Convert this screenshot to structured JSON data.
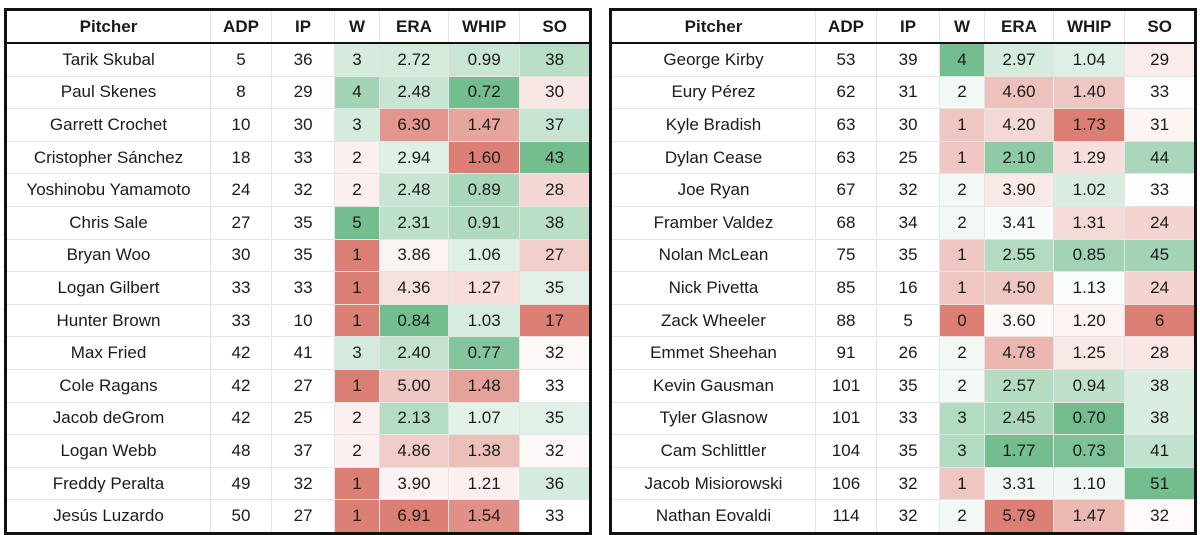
{
  "headers": [
    "Pitcher",
    "ADP",
    "IP",
    "W",
    "ERA",
    "WHIP",
    "SO"
  ],
  "colors": {
    "green_strong": "#73bd8f",
    "red_strong": "#db7f74",
    "neutral": "#ffffff"
  },
  "left_table": [
    {
      "pitcher": "Tarik Skubal",
      "adp": "5",
      "ip": "36",
      "w": "3",
      "era": "2.72",
      "whip": "0.99",
      "so": "38"
    },
    {
      "pitcher": "Paul Skenes",
      "adp": "8",
      "ip": "29",
      "w": "4",
      "era": "2.48",
      "whip": "0.72",
      "so": "30"
    },
    {
      "pitcher": "Garrett Crochet",
      "adp": "10",
      "ip": "30",
      "w": "3",
      "era": "6.30",
      "whip": "1.47",
      "so": "37"
    },
    {
      "pitcher": "Cristopher Sánchez",
      "adp": "18",
      "ip": "33",
      "w": "2",
      "era": "2.94",
      "whip": "1.60",
      "so": "43"
    },
    {
      "pitcher": "Yoshinobu Yamamoto",
      "adp": "24",
      "ip": "32",
      "w": "2",
      "era": "2.48",
      "whip": "0.89",
      "so": "28"
    },
    {
      "pitcher": "Chris Sale",
      "adp": "27",
      "ip": "35",
      "w": "5",
      "era": "2.31",
      "whip": "0.91",
      "so": "38"
    },
    {
      "pitcher": "Bryan Woo",
      "adp": "30",
      "ip": "35",
      "w": "1",
      "era": "3.86",
      "whip": "1.06",
      "so": "27"
    },
    {
      "pitcher": "Logan Gilbert",
      "adp": "33",
      "ip": "33",
      "w": "1",
      "era": "4.36",
      "whip": "1.27",
      "so": "35"
    },
    {
      "pitcher": "Hunter Brown",
      "adp": "33",
      "ip": "10",
      "w": "1",
      "era": "0.84",
      "whip": "1.03",
      "so": "17"
    },
    {
      "pitcher": "Max Fried",
      "adp": "42",
      "ip": "41",
      "w": "3",
      "era": "2.40",
      "whip": "0.77",
      "so": "32"
    },
    {
      "pitcher": "Cole Ragans",
      "adp": "42",
      "ip": "27",
      "w": "1",
      "era": "5.00",
      "whip": "1.48",
      "so": "33"
    },
    {
      "pitcher": "Jacob deGrom",
      "adp": "42",
      "ip": "25",
      "w": "2",
      "era": "2.13",
      "whip": "1.07",
      "so": "35"
    },
    {
      "pitcher": "Logan Webb",
      "adp": "48",
      "ip": "37",
      "w": "2",
      "era": "4.86",
      "whip": "1.38",
      "so": "32"
    },
    {
      "pitcher": "Freddy Peralta",
      "adp": "49",
      "ip": "32",
      "w": "1",
      "era": "3.90",
      "whip": "1.21",
      "so": "36"
    },
    {
      "pitcher": "Jesús Luzardo",
      "adp": "50",
      "ip": "27",
      "w": "1",
      "era": "6.91",
      "whip": "1.54",
      "so": "33"
    }
  ],
  "right_table": [
    {
      "pitcher": "George Kirby",
      "adp": "53",
      "ip": "39",
      "w": "4",
      "era": "2.97",
      "whip": "1.04",
      "so": "29"
    },
    {
      "pitcher": "Eury Pérez",
      "adp": "62",
      "ip": "31",
      "w": "2",
      "era": "4.60",
      "whip": "1.40",
      "so": "33"
    },
    {
      "pitcher": "Kyle Bradish",
      "adp": "63",
      "ip": "30",
      "w": "1",
      "era": "4.20",
      "whip": "1.73",
      "so": "31"
    },
    {
      "pitcher": "Dylan Cease",
      "adp": "63",
      "ip": "25",
      "w": "1",
      "era": "2.10",
      "whip": "1.29",
      "so": "44"
    },
    {
      "pitcher": "Joe Ryan",
      "adp": "67",
      "ip": "32",
      "w": "2",
      "era": "3.90",
      "whip": "1.02",
      "so": "33"
    },
    {
      "pitcher": "Framber Valdez",
      "adp": "68",
      "ip": "34",
      "w": "2",
      "era": "3.41",
      "whip": "1.31",
      "so": "24"
    },
    {
      "pitcher": "Nolan McLean",
      "adp": "75",
      "ip": "35",
      "w": "1",
      "era": "2.55",
      "whip": "0.85",
      "so": "45"
    },
    {
      "pitcher": "Nick Pivetta",
      "adp": "85",
      "ip": "16",
      "w": "1",
      "era": "4.50",
      "whip": "1.13",
      "so": "24"
    },
    {
      "pitcher": "Zack Wheeler",
      "adp": "88",
      "ip": "5",
      "w": "0",
      "era": "3.60",
      "whip": "1.20",
      "so": "6"
    },
    {
      "pitcher": "Emmet Sheehan",
      "adp": "91",
      "ip": "26",
      "w": "2",
      "era": "4.78",
      "whip": "1.25",
      "so": "28"
    },
    {
      "pitcher": "Kevin Gausman",
      "adp": "101",
      "ip": "35",
      "w": "2",
      "era": "2.57",
      "whip": "0.94",
      "so": "38"
    },
    {
      "pitcher": "Tyler Glasnow",
      "adp": "101",
      "ip": "33",
      "w": "3",
      "era": "2.45",
      "whip": "0.70",
      "so": "38"
    },
    {
      "pitcher": "Cam Schlittler",
      "adp": "104",
      "ip": "35",
      "w": "3",
      "era": "1.77",
      "whip": "0.73",
      "so": "41"
    },
    {
      "pitcher": "Jacob Misiorowski",
      "adp": "106",
      "ip": "32",
      "w": "1",
      "era": "3.31",
      "whip": "1.10",
      "so": "51"
    },
    {
      "pitcher": "Nathan Eovaldi",
      "adp": "114",
      "ip": "32",
      "w": "2",
      "era": "5.79",
      "whip": "1.47",
      "so": "32"
    }
  ]
}
